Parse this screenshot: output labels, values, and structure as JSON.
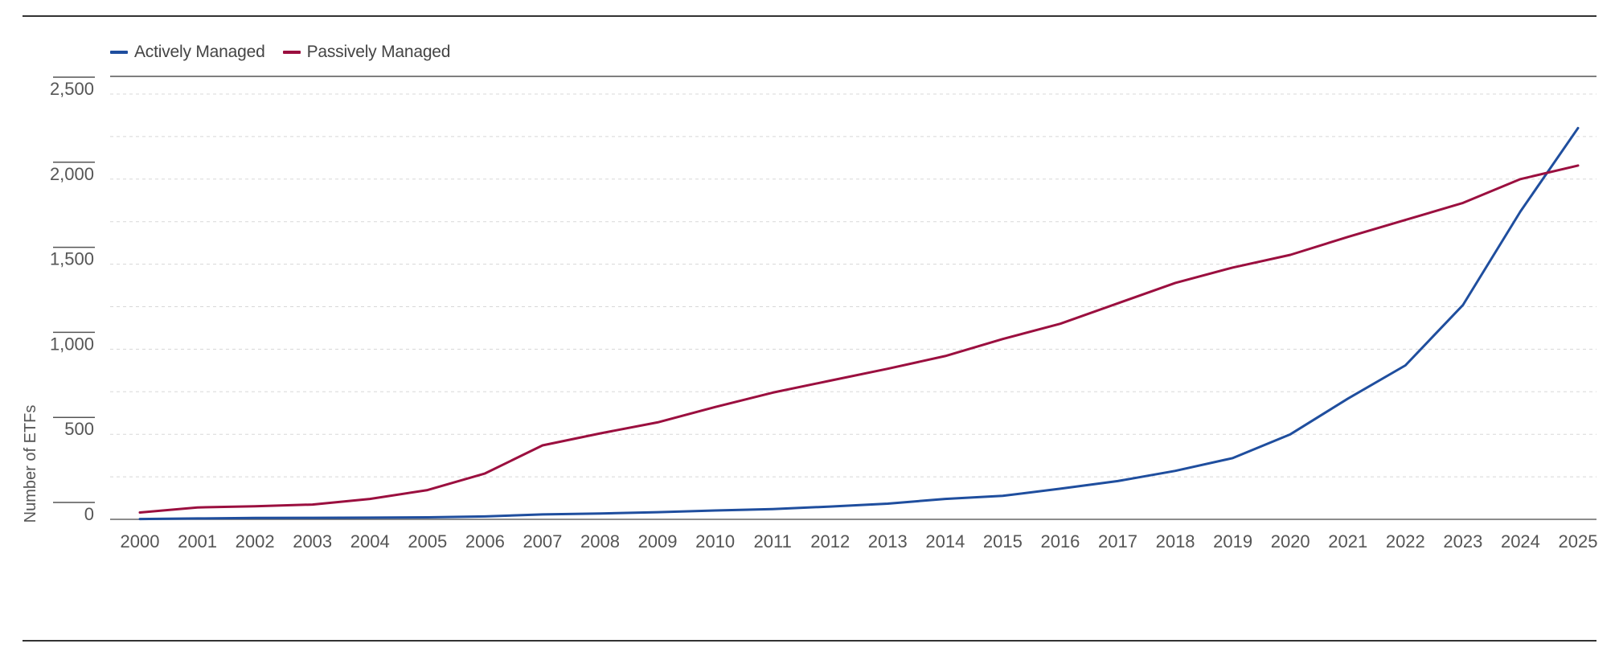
{
  "chart_data": {
    "type": "line",
    "title": "",
    "xlabel": "",
    "ylabel": "Number of ETFs",
    "ylim": [
      0,
      2500
    ],
    "yticks": [
      0,
      500,
      1000,
      1500,
      2000,
      2500
    ],
    "ytick_labels": [
      "0",
      "500",
      "1,000",
      "1,500",
      "2,000",
      "2,500"
    ],
    "x": [
      "2000",
      "2001",
      "2002",
      "2003",
      "2004",
      "2005",
      "2006",
      "2007",
      "2008",
      "2009",
      "2010",
      "2011",
      "2012",
      "2013",
      "2014",
      "2015",
      "2016",
      "2017",
      "2018",
      "2019",
      "2020",
      "2021",
      "2022",
      "2023",
      "2024",
      "2025"
    ],
    "grid": true,
    "legend_position": "top-left",
    "series": [
      {
        "name": "Actively Managed",
        "color": "#1f4e9e",
        "values": [
          2,
          5,
          8,
          9,
          10,
          12,
          17,
          29,
          34,
          42,
          52,
          60,
          75,
          92,
          120,
          138,
          180,
          225,
          285,
          360,
          500,
          710,
          905,
          1260,
          1810,
          2300
        ]
      },
      {
        "name": "Passively Managed",
        "color": "#9b0f3f",
        "values": [
          40,
          70,
          77,
          87,
          120,
          172,
          270,
          435,
          505,
          570,
          660,
          745,
          815,
          885,
          960,
          1060,
          1150,
          1270,
          1390,
          1480,
          1555,
          1660,
          1760,
          1860,
          2000,
          2080
        ]
      }
    ]
  }
}
